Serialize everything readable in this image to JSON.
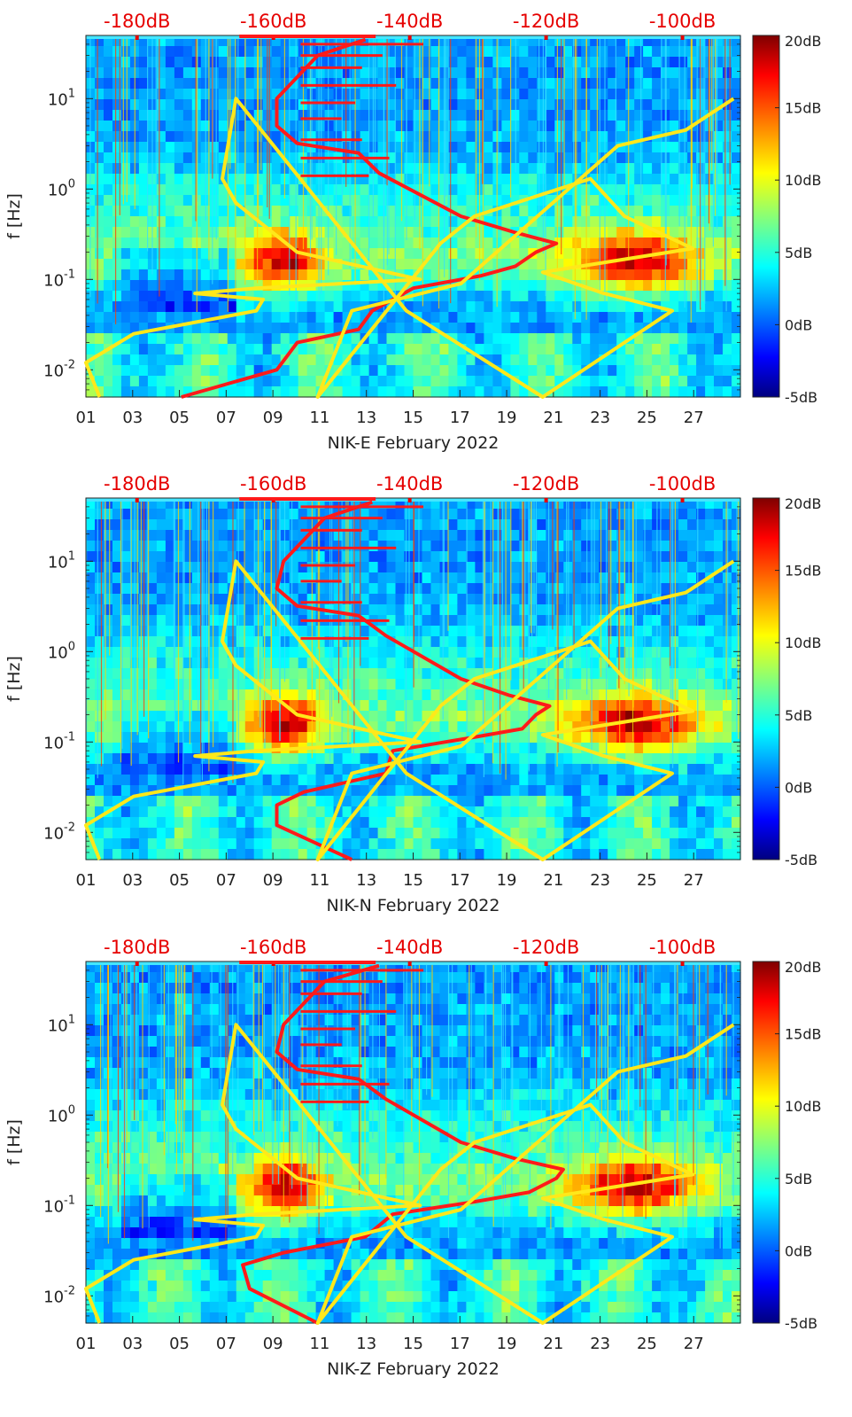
{
  "chart_data": [
    {
      "type": "heatmap",
      "xlabel": "NIK-E February 2022",
      "ylabel": "f [Hz]",
      "x_ticks": [
        "01",
        "03",
        "05",
        "07",
        "09",
        "11",
        "13",
        "15",
        "17",
        "19",
        "21",
        "23",
        "25",
        "27"
      ],
      "y_ticks": [
        {
          "value": 0.01,
          "base": "10",
          "exp": "-2"
        },
        {
          "value": 0.1,
          "base": "10",
          "exp": "-1"
        },
        {
          "value": 1,
          "base": "10",
          "exp": "0"
        },
        {
          "value": 10,
          "base": "10",
          "exp": "1"
        }
      ],
      "y_scale": "log",
      "ylim": [
        0.005,
        50
      ],
      "xlim": [
        1,
        29
      ],
      "top_axis_labels": [
        "-180dB",
        "-160dB",
        "-140dB",
        "-120dB",
        "-100dB"
      ],
      "top_axis_values": [
        -180,
        -160,
        -140,
        -120,
        -100
      ],
      "top_axis_range": [
        -187.5,
        -91.5
      ],
      "colorbar": {
        "ticks": [
          "20dB",
          "15dB",
          "10dB",
          "5dB",
          "0dB",
          "-5dB"
        ],
        "range": [
          -5,
          20
        ],
        "colormap": "jet"
      },
      "series": [
        {
          "color": "#ff1a1a",
          "x_dB": [
            -173.5,
            -159.5,
            -156.5,
            -147.5,
            -145.5,
            -139.5,
            -129.5,
            -124.5,
            -121.5,
            -118.5,
            -124.5,
            -132.5,
            -144.5,
            -147.5,
            -156.5,
            -159.5,
            -159.5,
            -153.5,
            -146.5
          ],
          "f": [
            0.005,
            0.01,
            0.02,
            0.028,
            0.045,
            0.08,
            0.11,
            0.14,
            0.2,
            0.25,
            0.33,
            0.5,
            1.5,
            2.5,
            3.2,
            5,
            10,
            30,
            45
          ]
        },
        {
          "color": "#ffe81a",
          "x_dB": [
            -185.5,
            -187.5,
            -180.5,
            -162.5,
            -161.5,
            -171.5,
            -162.5,
            -138.5,
            -156.5,
            -165.5,
            -167.5,
            -165.5,
            -140.5,
            -120.5,
            -101.5,
            -111.5,
            -120.5,
            -98.5,
            -108.5,
            -113.5,
            -130.5,
            -135.5,
            -153.5,
            -148.5,
            -132.5,
            -109.5,
            -99.5,
            -92.5
          ],
          "f": [
            0.005,
            0.012,
            0.025,
            0.045,
            0.06,
            0.07,
            0.08,
            0.1,
            0.2,
            0.7,
            1.3,
            10,
            0.045,
            0.005,
            0.045,
            0.07,
            0.12,
            0.22,
            0.5,
            1.3,
            0.5,
            0.25,
            0.005,
            0.045,
            0.09,
            3,
            4.5,
            10
          ]
        }
      ]
    },
    {
      "type": "heatmap",
      "xlabel": "NIK-N February 2022",
      "ylabel": "f [Hz]",
      "x_ticks": [
        "01",
        "03",
        "05",
        "07",
        "09",
        "11",
        "13",
        "15",
        "17",
        "19",
        "21",
        "23",
        "25",
        "27"
      ],
      "y_ticks": [
        {
          "value": 0.01,
          "base": "10",
          "exp": "-2"
        },
        {
          "value": 0.1,
          "base": "10",
          "exp": "-1"
        },
        {
          "value": 1,
          "base": "10",
          "exp": "0"
        },
        {
          "value": 10,
          "base": "10",
          "exp": "1"
        }
      ],
      "y_scale": "log",
      "ylim": [
        0.005,
        50
      ],
      "xlim": [
        1,
        29
      ],
      "top_axis_labels": [
        "-180dB",
        "-160dB",
        "-140dB",
        "-120dB",
        "-100dB"
      ],
      "top_axis_values": [
        -180,
        -160,
        -140,
        -120,
        -100
      ],
      "top_axis_range": [
        -187.5,
        -91.5
      ],
      "colorbar": {
        "ticks": [
          "20dB",
          "15dB",
          "10dB",
          "5dB",
          "0dB",
          "-5dB"
        ],
        "range": [
          -5,
          20
        ],
        "colormap": "jet"
      },
      "series": [
        {
          "color": "#ff1a1a",
          "x_dB": [
            -148.5,
            -159.5,
            -159.5,
            -155.5,
            -143.5,
            -142.5,
            -131.5,
            -123.5,
            -121.5,
            -119.5,
            -125.5,
            -132.5,
            -143.5,
            -147.5,
            -156.5,
            -159.5,
            -158.5,
            -152.5,
            -145.5
          ],
          "f": [
            0.005,
            0.012,
            0.02,
            0.028,
            0.045,
            0.08,
            0.11,
            0.14,
            0.2,
            0.25,
            0.33,
            0.5,
            1.5,
            2.5,
            3.2,
            5,
            10,
            30,
            45
          ]
        },
        {
          "color": "#ffe81a",
          "x_dB": [
            -185.5,
            -187.5,
            -180.5,
            -162.5,
            -161.5,
            -171.5,
            -162.5,
            -138.5,
            -156.5,
            -165.5,
            -167.5,
            -165.5,
            -140.5,
            -120.5,
            -101.5,
            -111.5,
            -120.5,
            -98.5,
            -108.5,
            -113.5,
            -130.5,
            -135.5,
            -153.5,
            -148.5,
            -132.5,
            -109.5,
            -99.5,
            -92.5
          ],
          "f": [
            0.005,
            0.012,
            0.025,
            0.045,
            0.06,
            0.07,
            0.08,
            0.1,
            0.2,
            0.7,
            1.3,
            10,
            0.045,
            0.005,
            0.045,
            0.07,
            0.12,
            0.22,
            0.5,
            1.3,
            0.5,
            0.25,
            0.005,
            0.045,
            0.09,
            3,
            4.5,
            10
          ]
        }
      ]
    },
    {
      "type": "heatmap",
      "xlabel": "NIK-Z February 2022",
      "ylabel": "f [Hz]",
      "x_ticks": [
        "01",
        "03",
        "05",
        "07",
        "09",
        "11",
        "13",
        "15",
        "17",
        "19",
        "21",
        "23",
        "25",
        "27"
      ],
      "y_ticks": [
        {
          "value": 0.01,
          "base": "10",
          "exp": "-2"
        },
        {
          "value": 0.1,
          "base": "10",
          "exp": "-1"
        },
        {
          "value": 1,
          "base": "10",
          "exp": "0"
        },
        {
          "value": 10,
          "base": "10",
          "exp": "1"
        }
      ],
      "y_scale": "log",
      "ylim": [
        0.005,
        50
      ],
      "xlim": [
        1,
        29
      ],
      "top_axis_labels": [
        "-180dB",
        "-160dB",
        "-140dB",
        "-120dB",
        "-100dB"
      ],
      "top_axis_values": [
        -180,
        -160,
        -140,
        -120,
        -100
      ],
      "top_axis_range": [
        -187.5,
        -91.5
      ],
      "colorbar": {
        "ticks": [
          "20dB",
          "15dB",
          "10dB",
          "5dB",
          "0dB",
          "-5dB"
        ],
        "range": [
          -5,
          20
        ],
        "colormap": "jet"
      },
      "series": [
        {
          "color": "#ff1a1a",
          "x_dB": [
            -153.5,
            -163.5,
            -164.5,
            -158.5,
            -146.5,
            -142.5,
            -130.5,
            -122.5,
            -118.5,
            -117.5,
            -124.5,
            -132.5,
            -143.5,
            -147.5,
            -156.5,
            -159.5,
            -158.5,
            -152.5,
            -144.5
          ],
          "f": [
            0.005,
            0.012,
            0.022,
            0.03,
            0.045,
            0.08,
            0.11,
            0.14,
            0.2,
            0.25,
            0.33,
            0.5,
            1.5,
            2.5,
            3.2,
            5,
            10,
            30,
            45
          ]
        },
        {
          "color": "#ffe81a",
          "x_dB": [
            -185.5,
            -187.5,
            -180.5,
            -162.5,
            -161.5,
            -171.5,
            -162.5,
            -138.5,
            -156.5,
            -165.5,
            -167.5,
            -165.5,
            -140.5,
            -120.5,
            -101.5,
            -111.5,
            -120.5,
            -98.5,
            -108.5,
            -113.5,
            -130.5,
            -135.5,
            -153.5,
            -148.5,
            -132.5,
            -109.5,
            -99.5,
            -92.5
          ],
          "f": [
            0.005,
            0.012,
            0.025,
            0.045,
            0.06,
            0.07,
            0.08,
            0.1,
            0.2,
            0.7,
            1.3,
            10,
            0.045,
            0.005,
            0.045,
            0.07,
            0.12,
            0.22,
            0.5,
            1.3,
            0.5,
            0.25,
            0.005,
            0.045,
            0.09,
            3,
            4.5,
            10
          ]
        }
      ]
    }
  ]
}
